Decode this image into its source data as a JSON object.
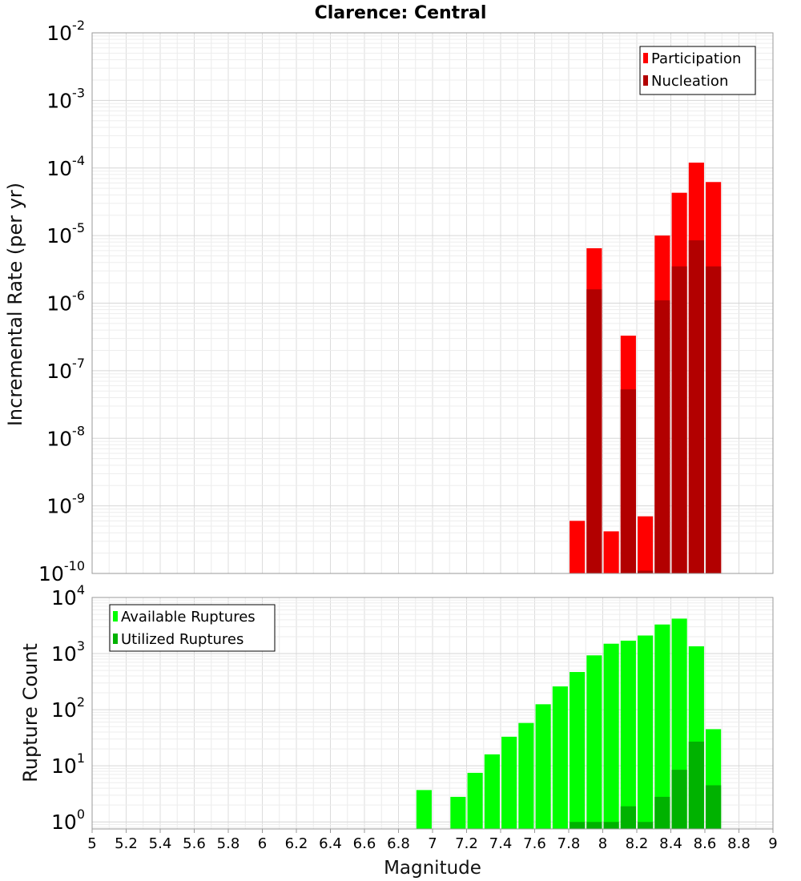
{
  "chart_data": [
    {
      "type": "bar",
      "title": "Clarence: Central",
      "xlabel": "Magnitude",
      "ylabel": "Incremental Rate (per yr)",
      "yscale": "log",
      "xlim": [
        5,
        9
      ],
      "ylim": [
        1e-10,
        0.01
      ],
      "ytick_bases": [
        "10",
        "10",
        "10",
        "10",
        "10",
        "10",
        "10",
        "10",
        "10"
      ],
      "ytick_exponents": [
        "-2",
        "-3",
        "-4",
        "-5",
        "-6",
        "-7",
        "-8",
        "-9",
        "-10"
      ],
      "grid": true,
      "legend_position": "top-right",
      "x": [
        7.85,
        7.95,
        8.05,
        8.15,
        8.25,
        8.35,
        8.45,
        8.55,
        8.65
      ],
      "series": [
        {
          "name": "Participation",
          "color": "#ff0000",
          "values": [
            6e-10,
            6.5e-06,
            4.2e-10,
            3.3e-07,
            7e-10,
            1e-05,
            4.3e-05,
            0.00012,
            6.2e-05
          ]
        },
        {
          "name": "Nucleation",
          "color": "#b20000",
          "values": [
            null,
            1.6e-06,
            null,
            5.3e-08,
            1.1e-10,
            1.1e-06,
            3.5e-06,
            8.5e-06,
            3.5e-06
          ]
        }
      ]
    },
    {
      "type": "bar",
      "xlabel": "Magnitude",
      "ylabel": "Rupture Count",
      "yscale": "log",
      "xlim": [
        5,
        9
      ],
      "ylim": [
        0.75,
        10000
      ],
      "ytick_bases": [
        "10",
        "10",
        "10",
        "10",
        "10"
      ],
      "ytick_exponents": [
        "4",
        "3",
        "2",
        "1",
        "0"
      ],
      "xticks": [
        "5",
        "5.2",
        "5.4",
        "5.6",
        "5.8",
        "6",
        "6.2",
        "6.4",
        "6.6",
        "6.8",
        "7",
        "7.2",
        "7.4",
        "7.6",
        "7.8",
        "8",
        "8.2",
        "8.4",
        "8.6",
        "8.8",
        "9"
      ],
      "grid": true,
      "legend_position": "top-left",
      "x": [
        6.95,
        7.15,
        7.25,
        7.35,
        7.45,
        7.55,
        7.65,
        7.75,
        7.85,
        7.95,
        8.05,
        8.15,
        8.25,
        8.35,
        8.45,
        8.55,
        8.65
      ],
      "series": [
        {
          "name": "Available Ruptures",
          "color": "#00ff00",
          "values": [
            3.7,
            2.8,
            7.5,
            16,
            33,
            58,
            125,
            260,
            470,
            930,
            1500,
            1700,
            2100,
            3300,
            4200,
            1350,
            45
          ]
        },
        {
          "name": "Utilized Ruptures",
          "color": "#00b200",
          "values": [
            null,
            null,
            null,
            null,
            null,
            null,
            null,
            null,
            1,
            1,
            1,
            1.9,
            1,
            2.8,
            8.5,
            27,
            4.5
          ]
        }
      ]
    }
  ]
}
